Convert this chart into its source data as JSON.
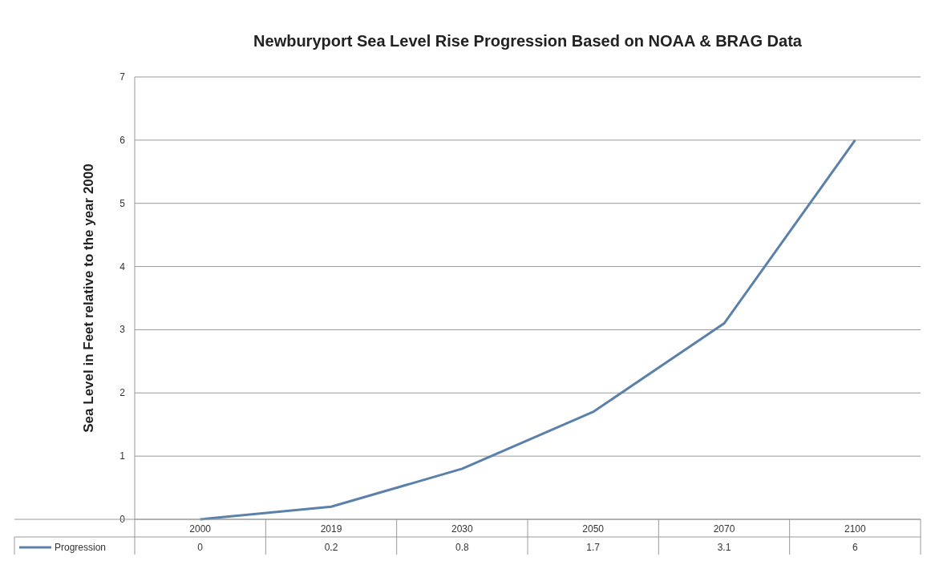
{
  "chart_data": {
    "type": "line",
    "title": "Newburyport Sea Level Rise Progression Based on NOAA & BRAG Data",
    "ylabel": "Sea Level in Feet relative to the year 2000",
    "categories": [
      "2000",
      "2019",
      "2030",
      "2050",
      "2070",
      "2100"
    ],
    "series": [
      {
        "name": "Progression",
        "color": "#5b80aa",
        "values": [
          0,
          0.2,
          0.8,
          1.7,
          3.1,
          6
        ]
      }
    ],
    "ylim": [
      0,
      7
    ],
    "yticks": [
      0,
      1,
      2,
      3,
      4,
      5,
      6,
      7
    ],
    "grid": "y",
    "legend": "bottom left",
    "data_labels": true
  }
}
